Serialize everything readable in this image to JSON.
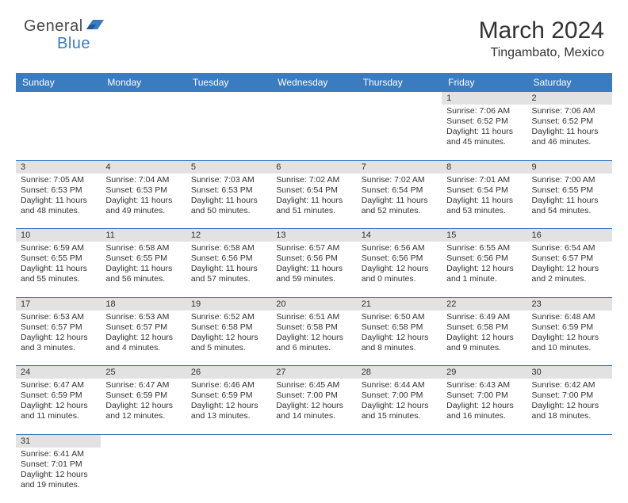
{
  "logo": {
    "general": "General",
    "blue": "Blue"
  },
  "title": "March 2024",
  "location": "Tingambato, Mexico",
  "colors": {
    "header_bg": "#3b7bbf",
    "header_text": "#ffffff",
    "daynum_bg": "#e2e2e2",
    "cell_border": "#3b7bbf",
    "logo_gray": "#4a4a4a",
    "logo_blue": "#3b7bbf"
  },
  "weekdays": [
    "Sunday",
    "Monday",
    "Tuesday",
    "Wednesday",
    "Thursday",
    "Friday",
    "Saturday"
  ],
  "weeks": [
    [
      null,
      null,
      null,
      null,
      null,
      {
        "n": "1",
        "sunrise": "7:06 AM",
        "sunset": "6:52 PM",
        "daylight": "11 hours and 45 minutes."
      },
      {
        "n": "2",
        "sunrise": "7:06 AM",
        "sunset": "6:52 PM",
        "daylight": "11 hours and 46 minutes."
      }
    ],
    [
      {
        "n": "3",
        "sunrise": "7:05 AM",
        "sunset": "6:53 PM",
        "daylight": "11 hours and 48 minutes."
      },
      {
        "n": "4",
        "sunrise": "7:04 AM",
        "sunset": "6:53 PM",
        "daylight": "11 hours and 49 minutes."
      },
      {
        "n": "5",
        "sunrise": "7:03 AM",
        "sunset": "6:53 PM",
        "daylight": "11 hours and 50 minutes."
      },
      {
        "n": "6",
        "sunrise": "7:02 AM",
        "sunset": "6:54 PM",
        "daylight": "11 hours and 51 minutes."
      },
      {
        "n": "7",
        "sunrise": "7:02 AM",
        "sunset": "6:54 PM",
        "daylight": "11 hours and 52 minutes."
      },
      {
        "n": "8",
        "sunrise": "7:01 AM",
        "sunset": "6:54 PM",
        "daylight": "11 hours and 53 minutes."
      },
      {
        "n": "9",
        "sunrise": "7:00 AM",
        "sunset": "6:55 PM",
        "daylight": "11 hours and 54 minutes."
      }
    ],
    [
      {
        "n": "10",
        "sunrise": "6:59 AM",
        "sunset": "6:55 PM",
        "daylight": "11 hours and 55 minutes."
      },
      {
        "n": "11",
        "sunrise": "6:58 AM",
        "sunset": "6:55 PM",
        "daylight": "11 hours and 56 minutes."
      },
      {
        "n": "12",
        "sunrise": "6:58 AM",
        "sunset": "6:56 PM",
        "daylight": "11 hours and 57 minutes."
      },
      {
        "n": "13",
        "sunrise": "6:57 AM",
        "sunset": "6:56 PM",
        "daylight": "11 hours and 59 minutes."
      },
      {
        "n": "14",
        "sunrise": "6:56 AM",
        "sunset": "6:56 PM",
        "daylight": "12 hours and 0 minutes."
      },
      {
        "n": "15",
        "sunrise": "6:55 AM",
        "sunset": "6:56 PM",
        "daylight": "12 hours and 1 minute."
      },
      {
        "n": "16",
        "sunrise": "6:54 AM",
        "sunset": "6:57 PM",
        "daylight": "12 hours and 2 minutes."
      }
    ],
    [
      {
        "n": "17",
        "sunrise": "6:53 AM",
        "sunset": "6:57 PM",
        "daylight": "12 hours and 3 minutes."
      },
      {
        "n": "18",
        "sunrise": "6:53 AM",
        "sunset": "6:57 PM",
        "daylight": "12 hours and 4 minutes."
      },
      {
        "n": "19",
        "sunrise": "6:52 AM",
        "sunset": "6:58 PM",
        "daylight": "12 hours and 5 minutes."
      },
      {
        "n": "20",
        "sunrise": "6:51 AM",
        "sunset": "6:58 PM",
        "daylight": "12 hours and 6 minutes."
      },
      {
        "n": "21",
        "sunrise": "6:50 AM",
        "sunset": "6:58 PM",
        "daylight": "12 hours and 8 minutes."
      },
      {
        "n": "22",
        "sunrise": "6:49 AM",
        "sunset": "6:58 PM",
        "daylight": "12 hours and 9 minutes."
      },
      {
        "n": "23",
        "sunrise": "6:48 AM",
        "sunset": "6:59 PM",
        "daylight": "12 hours and 10 minutes."
      }
    ],
    [
      {
        "n": "24",
        "sunrise": "6:47 AM",
        "sunset": "6:59 PM",
        "daylight": "12 hours and 11 minutes."
      },
      {
        "n": "25",
        "sunrise": "6:47 AM",
        "sunset": "6:59 PM",
        "daylight": "12 hours and 12 minutes."
      },
      {
        "n": "26",
        "sunrise": "6:46 AM",
        "sunset": "6:59 PM",
        "daylight": "12 hours and 13 minutes."
      },
      {
        "n": "27",
        "sunrise": "6:45 AM",
        "sunset": "7:00 PM",
        "daylight": "12 hours and 14 minutes."
      },
      {
        "n": "28",
        "sunrise": "6:44 AM",
        "sunset": "7:00 PM",
        "daylight": "12 hours and 15 minutes."
      },
      {
        "n": "29",
        "sunrise": "6:43 AM",
        "sunset": "7:00 PM",
        "daylight": "12 hours and 16 minutes."
      },
      {
        "n": "30",
        "sunrise": "6:42 AM",
        "sunset": "7:00 PM",
        "daylight": "12 hours and 18 minutes."
      }
    ],
    [
      {
        "n": "31",
        "sunrise": "6:41 AM",
        "sunset": "7:01 PM",
        "daylight": "12 hours and 19 minutes."
      },
      null,
      null,
      null,
      null,
      null,
      null
    ]
  ],
  "labels": {
    "sunrise": "Sunrise:",
    "sunset": "Sunset:",
    "daylight": "Daylight:"
  }
}
